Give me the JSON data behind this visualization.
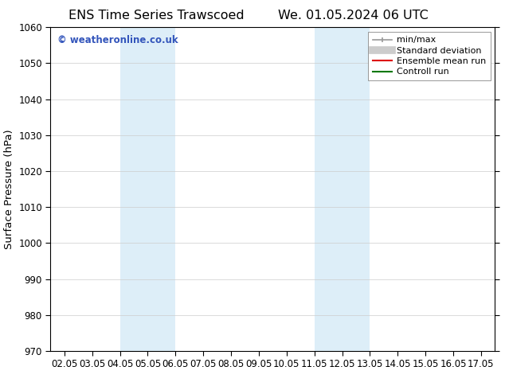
{
  "title_left": "ENS Time Series Trawscoed",
  "title_right": "We. 01.05.2024 06 UTC",
  "ylabel": "Surface Pressure (hPa)",
  "ylim": [
    970,
    1060
  ],
  "yticks": [
    970,
    980,
    990,
    1000,
    1010,
    1020,
    1030,
    1040,
    1050,
    1060
  ],
  "xtick_labels": [
    "02.05",
    "03.05",
    "04.05",
    "05.05",
    "06.05",
    "07.05",
    "08.05",
    "09.05",
    "10.05",
    "11.05",
    "12.05",
    "13.05",
    "14.05",
    "15.05",
    "16.05",
    "17.05"
  ],
  "xtick_positions": [
    0,
    1,
    2,
    3,
    4,
    5,
    6,
    7,
    8,
    9,
    10,
    11,
    12,
    13,
    14,
    15
  ],
  "xlim": [
    -0.5,
    15.5
  ],
  "background_color": "#ffffff",
  "plot_bg_color": "#ffffff",
  "shaded_regions": [
    {
      "x_start": 2,
      "x_end": 4,
      "color": "#ddeef8"
    },
    {
      "x_start": 9,
      "x_end": 11,
      "color": "#ddeef8"
    }
  ],
  "watermark_text": "© weatheronline.co.uk",
  "watermark_color": "#3355bb",
  "legend_entries": [
    {
      "label": "min/max",
      "color": "#999999",
      "linewidth": 1.2
    },
    {
      "label": "Standard deviation",
      "color": "#cccccc",
      "linewidth": 7
    },
    {
      "label": "Ensemble mean run",
      "color": "#dd0000",
      "linewidth": 1.5
    },
    {
      "label": "Controll run",
      "color": "#007700",
      "linewidth": 1.5
    }
  ],
  "title_fontsize": 11.5,
  "label_fontsize": 9.5,
  "tick_fontsize": 8.5,
  "watermark_fontsize": 8.5,
  "legend_fontsize": 8
}
